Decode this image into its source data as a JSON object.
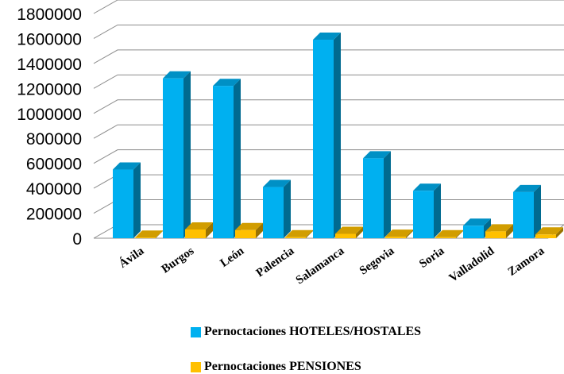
{
  "colors": {
    "hoteles": "#00B0F0",
    "pensiones": "#FFC000",
    "grid": "#8C8C8C"
  },
  "chart_data": {
    "type": "bar",
    "style": "3d-clustered-column",
    "categories": [
      "Ávila",
      "Burgos",
      "León",
      "Palencia",
      "Salamanca",
      "Segovia",
      "Soria",
      "Valladolid",
      "Zamora"
    ],
    "series": [
      {
        "name": "Pernoctaciones HOTELES/HOSTALES",
        "values": [
          550000,
          1280000,
          1220000,
          410000,
          1590000,
          640000,
          380000,
          100000,
          370000
        ]
      },
      {
        "name": "Pernoctaciones PENSIONES",
        "values": [
          5000,
          70000,
          65000,
          8000,
          35000,
          12000,
          8000,
          55000,
          30000
        ]
      }
    ],
    "yticks": [
      "0",
      "200000",
      "400000",
      "600000",
      "800000",
      "1000000",
      "1200000",
      "1400000",
      "1600000",
      "1800000"
    ],
    "ylim": [
      0,
      1800000
    ],
    "grid": true,
    "legend_position": "bottom"
  }
}
